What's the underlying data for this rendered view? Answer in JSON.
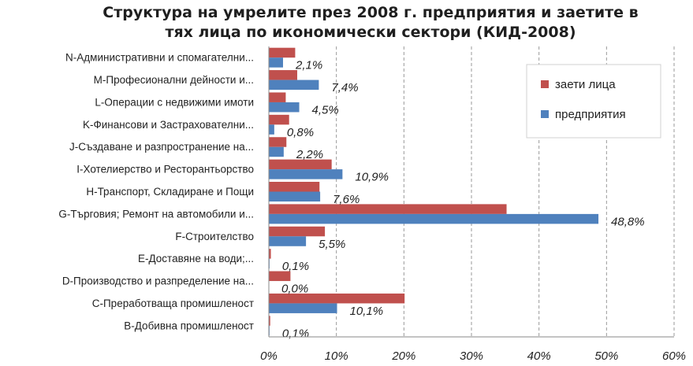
{
  "chart_data": {
    "type": "bar",
    "orientation": "horizontal",
    "title_line1": "Структура на умрелите през 2008 г. предприятия и заетите в",
    "title_line2": "тях лица по икономически сектори (КИД-2008)",
    "categories": [
      "N-Административни и спомагателни...",
      "M-Професионални дейности и...",
      "L-Операции с недвижими имоти",
      "K-Финансови и Застрахователни...",
      "J-Създаване и разпространение на...",
      "I-Хотелиерство и Ресторантьорство",
      "H-Транспорт, Складиране и Пощи",
      "G-Търговия; Ремонт на автомобили и...",
      "F-Строителство",
      "E-Доставяне на води;...",
      "D-Производство и разпределение на...",
      "C-Преработваща промишленост",
      "B-Добивна промишленост"
    ],
    "series": [
      {
        "name": "заети лица",
        "color": "#C0504D",
        "values": [
          3.9,
          4.2,
          2.5,
          3.0,
          2.6,
          9.3,
          7.5,
          35.2,
          8.3,
          0.3,
          3.2,
          20.1,
          0.2
        ]
      },
      {
        "name": "предприятия",
        "color": "#4F81BD",
        "values": [
          2.1,
          7.4,
          4.5,
          0.8,
          2.2,
          10.9,
          7.6,
          48.8,
          5.5,
          0.1,
          0.0,
          10.1,
          0.1
        ]
      }
    ],
    "data_labels": [
      "2,1%",
      "7,4%",
      "4,5%",
      "0,8%",
      "2,2%",
      "10,9%",
      "7,6%",
      "48,8%",
      "5,5%",
      "0,1%",
      "0,0%",
      "10,1%",
      "0,1%"
    ],
    "xlim": [
      0,
      60
    ],
    "xticks": [
      "0%",
      "10%",
      "20%",
      "30%",
      "40%",
      "50%",
      "60%"
    ],
    "grid": "vertical-dashed",
    "legend": "top-right",
    "legend_items": [
      "заети лица",
      "предприятия"
    ]
  }
}
